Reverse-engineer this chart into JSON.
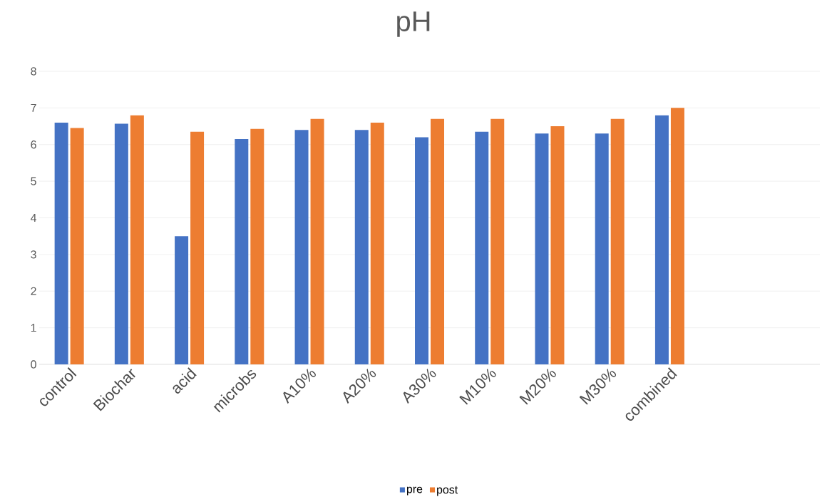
{
  "chart_data": {
    "type": "bar",
    "title": "pH",
    "categories": [
      "control",
      "Biochar",
      "acid",
      "microbs",
      "A10%",
      "A20%",
      "A30%",
      "M10%",
      "M20%",
      "M30%",
      "combined",
      null,
      null
    ],
    "series": [
      {
        "name": "pre",
        "color": "#4472c4",
        "values": [
          6.6,
          6.57,
          3.5,
          6.15,
          6.4,
          6.4,
          6.2,
          6.35,
          6.3,
          6.3,
          6.8,
          null,
          null
        ]
      },
      {
        "name": "post",
        "color": "#ed7d31",
        "values": [
          6.45,
          6.8,
          6.35,
          6.43,
          6.7,
          6.6,
          6.7,
          6.7,
          6.5,
          6.7,
          7.0,
          null,
          null
        ]
      }
    ],
    "ylim": [
      0,
      8
    ],
    "yticks": [
      0,
      1,
      2,
      3,
      4,
      5,
      6,
      7,
      8
    ],
    "grid": "y",
    "legend": "bottom"
  }
}
